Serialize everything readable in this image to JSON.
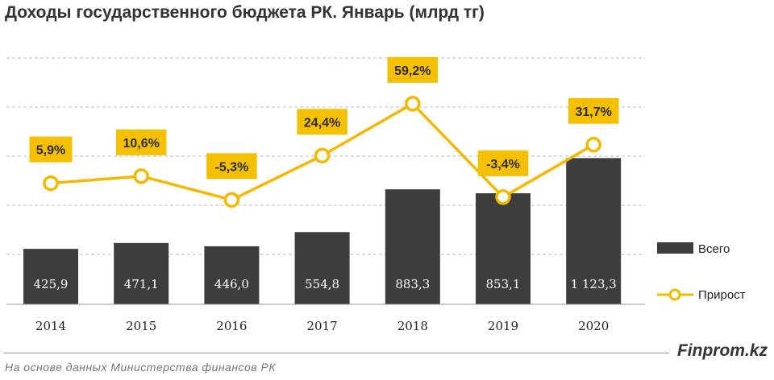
{
  "title": "Доходы государственного бюджета РК. Январь (млрд тг)",
  "brand": "Finprom.kz",
  "source": "На основе данных Министерства финансов РК",
  "colors": {
    "bar": "#3d3d3d",
    "line": "#f5b800",
    "label_bg": "#f5c000",
    "grid": "#bdbdbd"
  },
  "chart_data": {
    "type": "bar",
    "categories": [
      "2014",
      "2015",
      "2016",
      "2017",
      "2018",
      "2019",
      "2020"
    ],
    "series": [
      {
        "name": "Всего",
        "type": "bar",
        "values": [
          425.9,
          471.1,
          446.0,
          554.8,
          883.3,
          853.1,
          1123.3
        ],
        "labels": [
          "425,9",
          "471,1",
          "446,0",
          "554,8",
          "883,3",
          "853,1",
          "1 123,3"
        ]
      },
      {
        "name": "Прирост",
        "type": "line",
        "values": [
          5.9,
          10.6,
          -5.3,
          24.4,
          59.2,
          -3.4,
          31.7
        ],
        "labels": [
          "5,9%",
          "10,6%",
          "-5,3%",
          "24,4%",
          "59,2%",
          "-3,4%",
          "31,7%"
        ]
      }
    ],
    "legend": [
      "Всего",
      "Прирост"
    ],
    "legend_position": "right",
    "grid": true
  }
}
